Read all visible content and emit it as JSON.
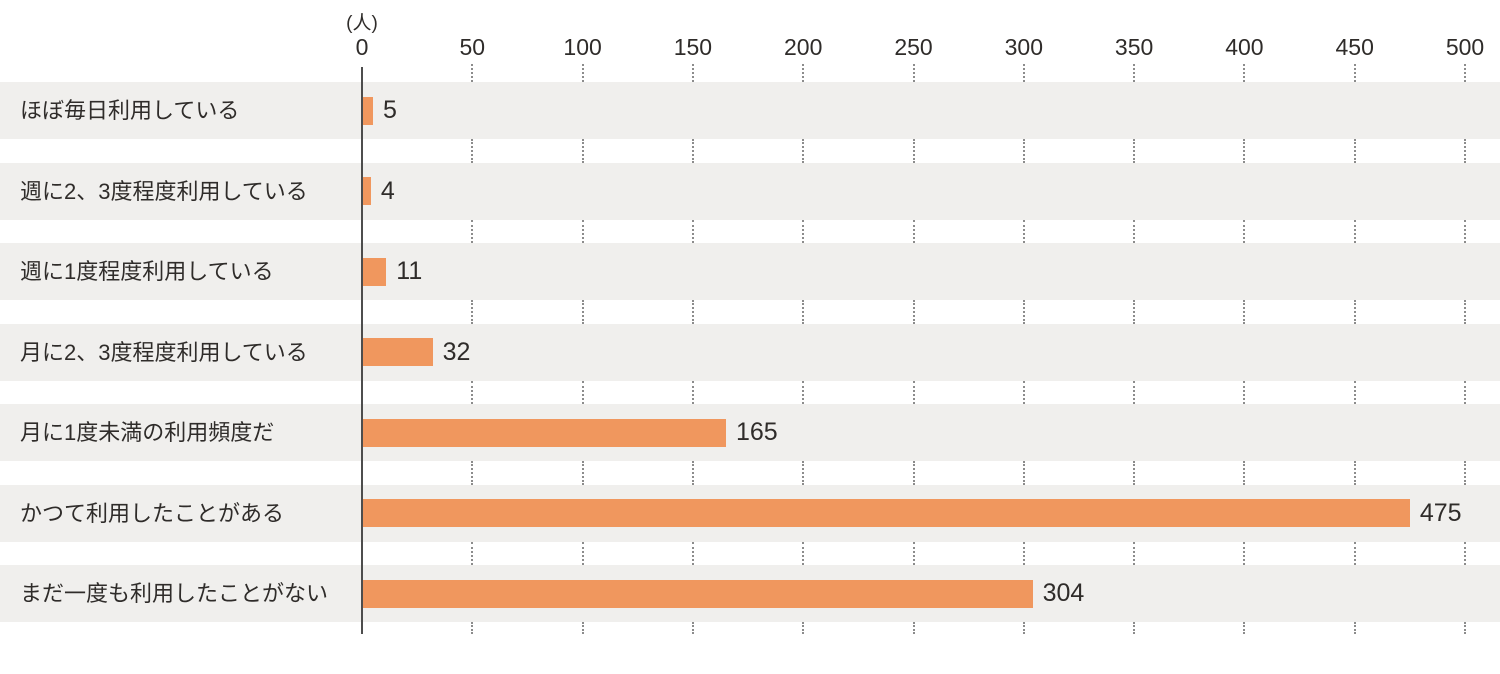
{
  "chart_data": {
    "type": "bar",
    "orientation": "horizontal",
    "unit_label": "(人)",
    "categories": [
      "ほぼ毎日利用している",
      "週に2、3度程度利用している",
      "週に1度程度利用している",
      "月に2、3度程度利用している",
      "月に1度未満の利用頻度だ",
      "かつて利用したことがある",
      "まだ一度も利用したことがない"
    ],
    "values": [
      5,
      4,
      11,
      32,
      165,
      475,
      304
    ],
    "xlim": [
      0,
      500
    ],
    "xticks": [
      0,
      50,
      100,
      150,
      200,
      250,
      300,
      350,
      400,
      450,
      500
    ],
    "grid": "dotted-vertical-in-row-gaps",
    "legend": "none",
    "colors": {
      "bar": "#F0975E",
      "row_background": "#F0EFED",
      "axis_line": "#4D4D4D",
      "grid_dots": "#8C8C8C",
      "text": "#2F2C2A"
    }
  }
}
